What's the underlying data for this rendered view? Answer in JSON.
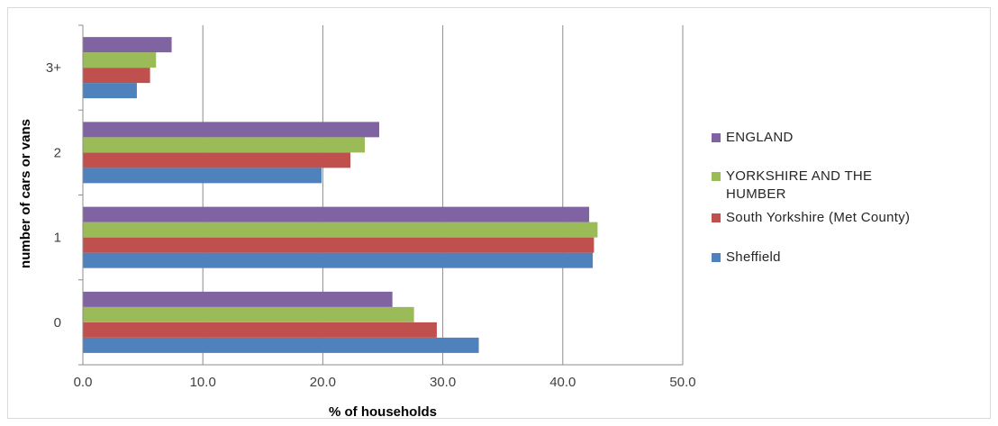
{
  "chart_data": {
    "type": "bar",
    "orientation": "horizontal",
    "title": "",
    "xlabel": "% of households",
    "ylabel": "number of cars or vans",
    "xlim": [
      0,
      50
    ],
    "xticks": [
      "0.0",
      "10.0",
      "20.0",
      "30.0",
      "40.0",
      "50.0"
    ],
    "categories": [
      "0",
      "1",
      "2",
      "3+"
    ],
    "grid": true,
    "legend_position": "right",
    "series": [
      {
        "name": "Sheffield",
        "color": "#4f81bd",
        "values": [
          33.0,
          42.5,
          19.9,
          4.5
        ]
      },
      {
        "name": "South Yorkshire (Met County)",
        "color": "#c0504d",
        "values": [
          29.5,
          42.6,
          22.3,
          5.6
        ]
      },
      {
        "name": "YORKSHIRE AND THE HUMBER",
        "color": "#9bbb59",
        "values": [
          27.6,
          42.9,
          23.5,
          6.1
        ]
      },
      {
        "name": "ENGLAND",
        "color": "#8064a2",
        "values": [
          25.8,
          42.2,
          24.7,
          7.4
        ]
      }
    ],
    "legend_order": [
      "ENGLAND",
      "YORKSHIRE AND THE HUMBER",
      "South Yorkshire (Met County)",
      "Sheffield"
    ]
  }
}
